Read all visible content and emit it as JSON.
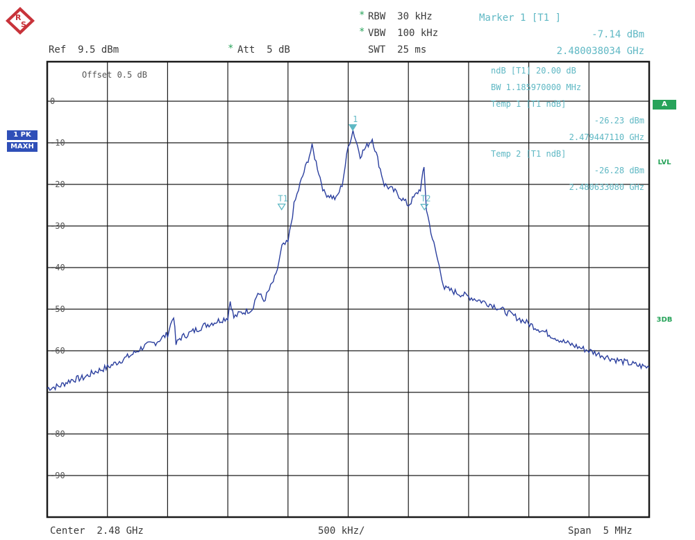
{
  "header": {
    "ref": "Ref  9.5 dBm",
    "att_star": "*",
    "att": "Att  5 dB",
    "rbw_star": "*",
    "rbw": "RBW  30 kHz",
    "vbw_star": "*",
    "vbw": "VBW  100 kHz",
    "swt": "SWT  25 ms",
    "offset": "Offset  0.5 dB"
  },
  "marker": {
    "title": "Marker 1 [T1 ]",
    "level": "-7.14 dBm",
    "freq": "2.480038034 GHz",
    "ndb_line": "ndB [T1]    20.00 dB",
    "bw_line": "BW   1.185970000 MHz",
    "temp1_title": "Temp 1 [T1 ndB]",
    "temp1_level": "-26.23 dBm",
    "temp1_freq": "2.479447110 GHz",
    "temp2_title": "Temp 2 [T1 ndB]",
    "temp2_level": "-26.28 dBm",
    "temp2_freq": "2.480633080 GHz",
    "m1_label": "1",
    "t1_label": "T1",
    "t2_label": "T2"
  },
  "side_badges": {
    "trace1": "1 PK",
    "trace2": "MAXH",
    "a": "A",
    "lvl": "LVL",
    "threedb": "3DB"
  },
  "footer": {
    "center": "Center  2.48 GHz",
    "div": "500 kHz/",
    "span": "Span  5 MHz"
  },
  "colors": {
    "trace": "#2b3f9e",
    "marker": "#5fb8c4",
    "grid": "#1a1a1a",
    "accent_green": "#27a35a",
    "badge_blue": "#2f4fb8"
  },
  "chart_data": {
    "type": "line",
    "title": "",
    "xlabel": "",
    "ylabel": "",
    "xlim": [
      2.4775,
      2.4825
    ],
    "ylim": [
      -100,
      9.5
    ],
    "y_ticks": [
      0,
      -10,
      -20,
      -30,
      -40,
      -50,
      -60,
      -70,
      -80,
      -90
    ],
    "y_tick_labels": [
      "0",
      "-10",
      "-20",
      "-30",
      "-40",
      "-50",
      "-60",
      "",
      "-80",
      "-90"
    ],
    "grid": true,
    "series": [
      {
        "x": [
          2.4775,
          2.4776,
          2.4777,
          2.4778,
          2.4779,
          2.478,
          2.4781,
          2.4782,
          2.4783,
          2.4784,
          2.4785,
          2.47855,
          2.47857,
          2.4786,
          2.4787,
          2.4788,
          2.4789,
          2.479,
          2.47902,
          2.47905,
          2.4791,
          2.4792,
          2.47925,
          2.4793,
          2.4794,
          2.47945,
          2.4795,
          2.47955,
          2.4796,
          2.4797,
          2.4798,
          2.4799,
          2.47995,
          2.48,
          2.48004,
          2.4801,
          2.4802,
          2.4803,
          2.4804,
          2.4805,
          2.4806,
          2.48063,
          2.48065,
          2.4807,
          2.4808,
          2.4809,
          2.481,
          2.4812,
          2.4814,
          2.4816,
          2.4818,
          2.482,
          2.4822,
          2.4824,
          2.4825
        ],
        "values": [
          -69,
          -68.5,
          -67,
          -66.5,
          -65,
          -64,
          -62.5,
          -61,
          -59,
          -58,
          -56,
          -51.5,
          -58.5,
          -57,
          -55.5,
          -54,
          -53,
          -52,
          -48,
          -52,
          -51,
          -50,
          -46,
          -48,
          -42,
          -35,
          -34,
          -25,
          -20,
          -11,
          -22,
          -23.5,
          -20,
          -11,
          -7,
          -13,
          -9,
          -20,
          -22,
          -25,
          -21,
          -16,
          -26,
          -33,
          -45,
          -46,
          -47,
          -49,
          -52,
          -55,
          -58,
          -60,
          -62,
          -63.5,
          -64
        ]
      }
    ],
    "markers": [
      {
        "name": "1",
        "x": 2.480038034,
        "y": -7.14
      },
      {
        "name": "T1",
        "x": 2.47944711,
        "y": -26.23
      },
      {
        "name": "T2",
        "x": 2.48063308,
        "y": -26.28
      }
    ]
  }
}
